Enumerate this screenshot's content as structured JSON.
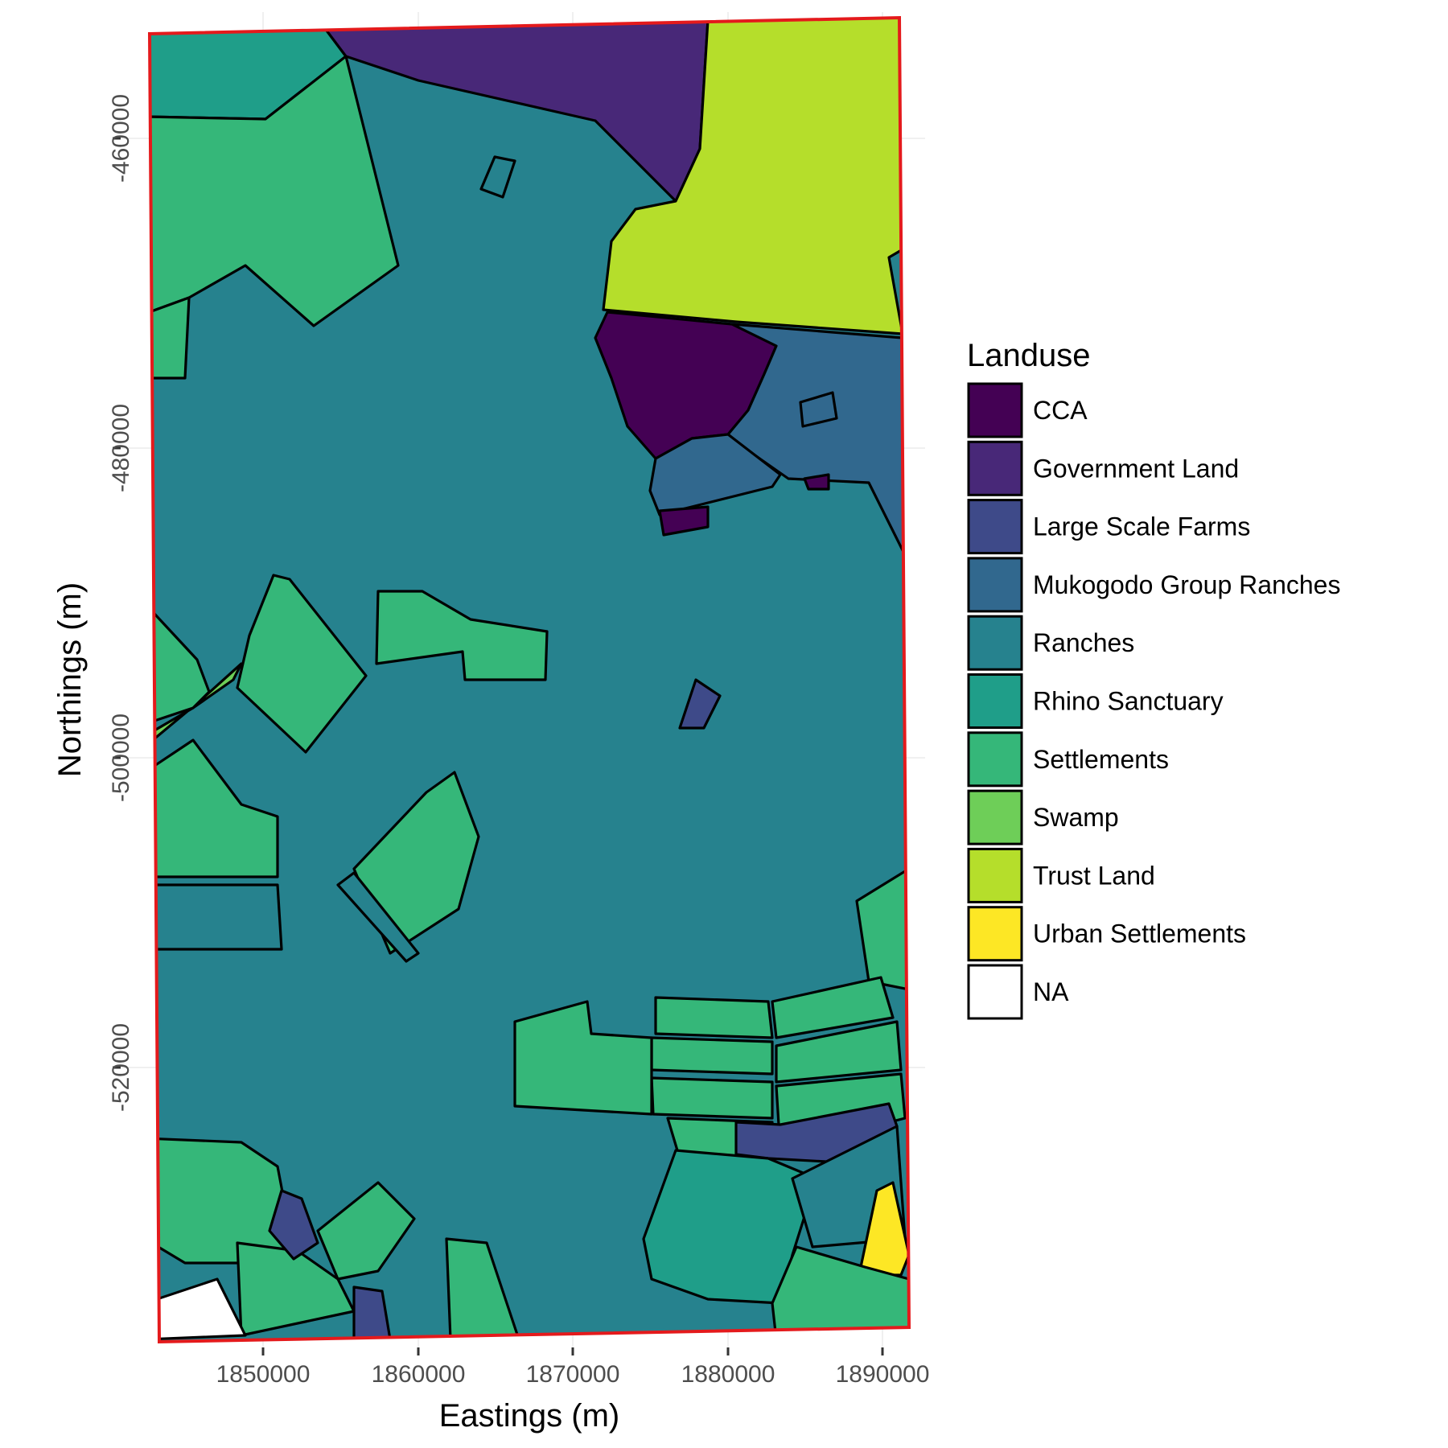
{
  "map": {
    "legend_title": "Landuse",
    "x_axis_title": "Eastings (m)",
    "y_axis_title": "Northings (m)",
    "x_ticks": [
      "1850000",
      "1860000",
      "1870000",
      "1880000",
      "1890000"
    ],
    "y_ticks": [
      "-460000",
      "-480000",
      "-500000",
      "-520000"
    ],
    "boundary_color": "#e41a1c",
    "categories": [
      {
        "name": "CCA",
        "color": "#440154"
      },
      {
        "name": "Government Land",
        "color": "#482878"
      },
      {
        "name": "Large Scale Farms",
        "color": "#3e4a89"
      },
      {
        "name": "Mukogodo Group Ranches",
        "color": "#31688e"
      },
      {
        "name": "Ranches",
        "color": "#26828e"
      },
      {
        "name": "Rhino Sanctuary",
        "color": "#1f9e89"
      },
      {
        "name": "Settlements",
        "color": "#35b779"
      },
      {
        "name": "Swamp",
        "color": "#6ece58"
      },
      {
        "name": "Trust Land",
        "color": "#b5de2b"
      },
      {
        "name": "Urban Settlements",
        "color": "#fde725"
      },
      {
        "name": "NA",
        "color": "#ffffff"
      }
    ]
  }
}
